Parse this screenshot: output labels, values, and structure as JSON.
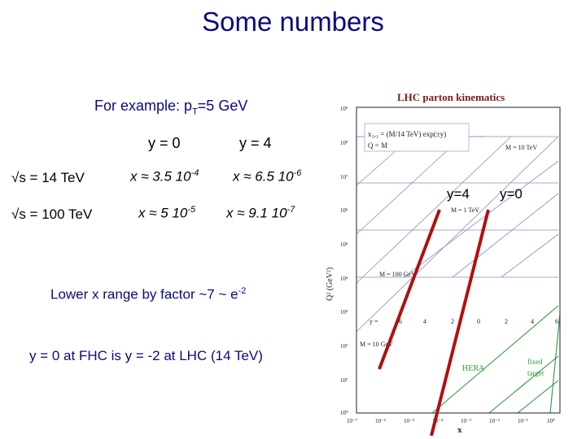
{
  "slide": {
    "title": "Some numbers",
    "example": {
      "prefix": "For example: p",
      "sub": "T",
      "suffix": "=5 GeV"
    },
    "col_y0": "y = 0",
    "col_y4": "y = 4",
    "rows": [
      {
        "label": "√s = 14 TeV",
        "x_y0": "x ≈ 3.5 10",
        "exp_y0": "-4",
        "x_y4": "x ≈ 6.5 10",
        "exp_y4": "-6"
      },
      {
        "label": "√s = 100 TeV",
        "x_y0": "x ≈ 5 10",
        "exp_y0": "-5",
        "x_y4": "x ≈ 9.1 10",
        "exp_y4": "-7"
      }
    ],
    "lower_x": {
      "text": "Lower x range by factor ~7 ~ e",
      "exp": "-2"
    },
    "fhc_note": "y = 0 at FHC is y = -2 at LHC (14 TeV)",
    "annot_y4": "y=4",
    "annot_y0": "y=0"
  },
  "figure": {
    "title": "LHC parton kinematics",
    "formula1": "x₁,₂ = (M/14 TeV) exp(±y)",
    "formula2": "Q = M",
    "mass_labels": [
      "M = 10 TeV",
      "M = 1 TeV",
      "M = 100 GeV",
      "M = 10 GeV"
    ],
    "y_row_label": "y =",
    "y_values": [
      "6",
      "4",
      "2",
      "0",
      "2",
      "4",
      "6"
    ],
    "hera": "HERA",
    "fixed_target": [
      "fixed",
      "target"
    ],
    "xlabel": "x",
    "ylabel": "Q²  (GeV²)",
    "yticks": [
      "10⁹",
      "10⁸",
      "10⁷",
      "10⁶",
      "10⁵",
      "10⁴",
      "10³",
      "10²",
      "10¹",
      "10⁰"
    ],
    "xticks": [
      "10⁻⁷",
      "10⁻⁶",
      "10⁻⁵",
      "10⁻⁴",
      "10⁻³",
      "10⁻²",
      "10⁻¹",
      "10⁰"
    ],
    "colors": {
      "title": "#7a1a1a",
      "axes": "#222222",
      "grid": "#8a8ac8",
      "mass": "#6a6ab8",
      "hera": "#2a9a3a",
      "marker": "#b01010"
    }
  }
}
